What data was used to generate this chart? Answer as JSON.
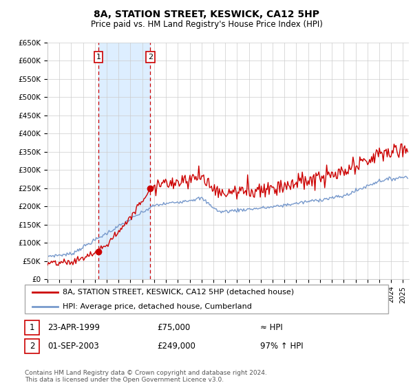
{
  "title": "8A, STATION STREET, KESWICK, CA12 5HP",
  "subtitle": "Price paid vs. HM Land Registry's House Price Index (HPI)",
  "ylabel_ticks": [
    "£0",
    "£50K",
    "£100K",
    "£150K",
    "£200K",
    "£250K",
    "£300K",
    "£350K",
    "£400K",
    "£450K",
    "£500K",
    "£550K",
    "£600K",
    "£650K"
  ],
  "ylim": [
    0,
    650000
  ],
  "xlim_start": 1995.0,
  "xlim_end": 2025.5,
  "transaction1_x": 1999.31,
  "transaction1_y": 75000,
  "transaction2_x": 2003.67,
  "transaction2_y": 249000,
  "line1_color": "#cc0000",
  "line2_color": "#7799cc",
  "shade_color": "#ddeeff",
  "vline_color": "#cc0000",
  "grid_color": "#cccccc",
  "bg_color": "#ffffff",
  "legend_line1": "8A, STATION STREET, KESWICK, CA12 5HP (detached house)",
  "legend_line2": "HPI: Average price, detached house, Cumberland",
  "table_row1_num": "1",
  "table_row1_date": "23-APR-1999",
  "table_row1_price": "£75,000",
  "table_row1_hpi": "≈ HPI",
  "table_row2_num": "2",
  "table_row2_date": "01-SEP-2003",
  "table_row2_price": "£249,000",
  "table_row2_hpi": "97% ↑ HPI",
  "footer": "Contains HM Land Registry data © Crown copyright and database right 2024.\nThis data is licensed under the Open Government Licence v3.0."
}
